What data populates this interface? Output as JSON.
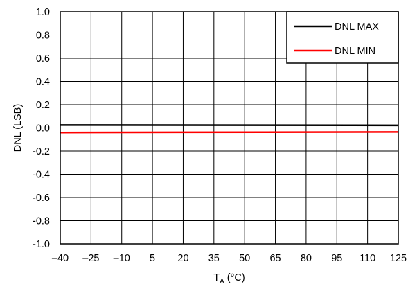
{
  "chart_data": {
    "type": "line",
    "title": "",
    "xlabel": "T",
    "xlabel_sub": "A",
    "xlabel_unit": " (°C)",
    "ylabel": "DNL (LSB)",
    "xlim": [
      -40,
      125
    ],
    "ylim": [
      -1.0,
      1.0
    ],
    "grid": true,
    "legend_position": "top-right",
    "x_ticks": [
      -40,
      -25,
      -10,
      5,
      20,
      35,
      50,
      65,
      80,
      95,
      110,
      125
    ],
    "x_tick_labels": [
      "–40",
      "–25",
      "–10",
      "5",
      "20",
      "35",
      "50",
      "65",
      "80",
      "95",
      "110",
      "125"
    ],
    "y_ticks": [
      1.0,
      0.8,
      0.6,
      0.4,
      0.2,
      0.0,
      -0.2,
      -0.4,
      -0.6,
      -0.8,
      -1.0
    ],
    "y_tick_labels": [
      "1.0",
      "0.8",
      "0.6",
      "0.4",
      "0.2",
      "0.0",
      "-0.2",
      "-0.4",
      "-0.6",
      "-0.8",
      "-1.0"
    ],
    "series": [
      {
        "name": "DNL MAX",
        "color": "#000000",
        "x": [
          -40,
          125
        ],
        "y": [
          0.025,
          0.022
        ]
      },
      {
        "name": "DNL MIN",
        "color": "#ff0000",
        "x": [
          -40,
          125
        ],
        "y": [
          -0.04,
          -0.035
        ]
      }
    ]
  }
}
